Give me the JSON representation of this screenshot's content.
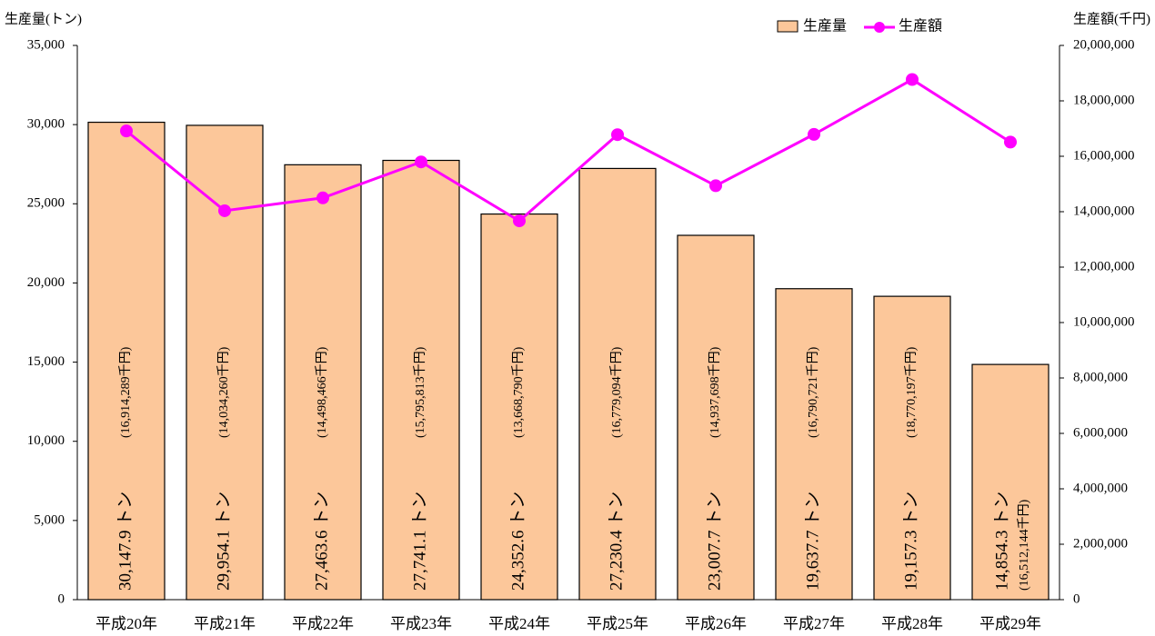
{
  "chart_data": {
    "type": "bar",
    "y_label": "生産量(トン)",
    "y2_label": "生産額(千円)",
    "legend": "top-right",
    "grid": false,
    "categories": [
      "平成20年",
      "平成21年",
      "平成22年",
      "平成23年",
      "平成24年",
      "平成25年",
      "平成26年",
      "平成27年",
      "平成28年",
      "平成29年"
    ],
    "series": [
      {
        "name": "生産量",
        "type": "bar",
        "color": "#fcc79a",
        "values": [
          30147.9,
          29954.1,
          27463.6,
          27741.1,
          24352.6,
          27230.4,
          23007.7,
          19637.7,
          19157.3,
          14854.3
        ],
        "value_labels": [
          "30,147.9 トン",
          "29,954.1 トン",
          "27,463.6 トン",
          "27,741.1 トン",
          "24,352.6 トン",
          "27,230.4 トン",
          "23,007.7 トン",
          "19,637.7 トン",
          "19,157.3 トン",
          "14,854.3 トン"
        ]
      },
      {
        "name": "生産額",
        "type": "line",
        "axis": "y2",
        "color": "#ff00ff",
        "values": [
          16914289,
          14034260,
          14498466,
          15795813,
          13668790,
          16779094,
          14937698,
          16790721,
          18770197,
          16512144
        ],
        "value_labels": [
          "(16,914,289千円)",
          "(14,034,260千円)",
          "(14,498,466千円)",
          "(15,795,813千円)",
          "(13,668,790千円)",
          "(16,779,094千円)",
          "(14,937,698千円)",
          "(16,790,721千円)",
          "(18,770,197千円)",
          "(16,512,144千円)"
        ]
      }
    ],
    "ylim": [
      0,
      35000
    ],
    "yticks": [
      0,
      {
        "value": 5000,
        "label": "5,000"
      },
      {
        "value": 10000,
        "label": "10,000"
      },
      {
        "value": 15000,
        "label": "15,000"
      },
      {
        "value": 20000,
        "label": "20,000"
      },
      {
        "value": 25000,
        "label": "25,000"
      },
      {
        "value": 30000,
        "label": "30,000"
      },
      {
        "value": 35000,
        "label": "35,000"
      }
    ],
    "y2lim": [
      0,
      20000000
    ],
    "y2ticks": [
      0,
      {
        "value": 2000000,
        "label": "2,000,000"
      },
      {
        "value": 4000000,
        "label": "4,000,000"
      },
      {
        "value": 6000000,
        "label": "6,000,000"
      },
      {
        "value": 8000000,
        "label": "8,000,000"
      },
      {
        "value": 10000000,
        "label": "10,000,000"
      },
      {
        "value": 12000000,
        "label": "12,000,000"
      },
      {
        "value": 14000000,
        "label": "14,000,000"
      },
      {
        "value": 16000000,
        "label": "16,000,000"
      },
      {
        "value": 18000000,
        "label": "18,000,000"
      },
      {
        "value": 20000000,
        "label": "20,000,000"
      }
    ]
  }
}
